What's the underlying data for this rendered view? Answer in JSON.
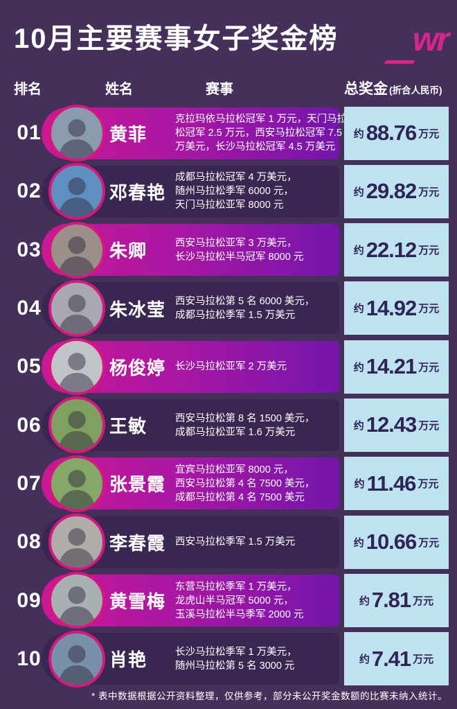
{
  "header": {
    "title": "10月主要赛事女子奖金榜",
    "logo": "wr"
  },
  "columns": {
    "rank": "排名",
    "name": "姓名",
    "events": "赛事",
    "prize": "总奖金",
    "prize_note": "(折合人民币)"
  },
  "labels": {
    "prize_prefix": "约",
    "prize_unit": "万元"
  },
  "rows": [
    {
      "rank": "01",
      "name": "黄菲",
      "events": [
        "克拉玛依马拉松冠军 1 万元，天门马拉",
        "松冠军 2.5 万元，西安马拉松冠军 7.5",
        "万美元，长沙马拉松冠军 4.5 万美元"
      ],
      "prize": "88.76",
      "photo_bg": "#8a9bb0"
    },
    {
      "rank": "02",
      "name": "邓春艳",
      "events": [
        "成都马拉松冠军 4 万美元，",
        "随州马拉松季军 6000 元，",
        "天门马拉松亚军 8000 元"
      ],
      "prize": "29.82",
      "photo_bg": "#5f8fc0"
    },
    {
      "rank": "03",
      "name": "朱卿",
      "events": [
        "西安马拉松亚军 3 万美元，",
        "长沙马拉松半马冠军 8000 元"
      ],
      "prize": "22.12",
      "photo_bg": "#9a8f8a"
    },
    {
      "rank": "04",
      "name": "朱冰莹",
      "events": [
        "西安马拉松第 5 名 6000 美元，",
        "成都马拉松季军 1.5 万美元"
      ],
      "prize": "14.92",
      "photo_bg": "#a8a8b0"
    },
    {
      "rank": "05",
      "name": "杨俊婷",
      "events": [
        "长沙马拉松亚军 2 万美元"
      ],
      "prize": "14.21",
      "photo_bg": "#c0c4c8"
    },
    {
      "rank": "06",
      "name": "王敏",
      "events": [
        "西安马拉松第 8 名 1500 美元，",
        "成都马拉松亚军 1.6 万美元"
      ],
      "prize": "12.43",
      "photo_bg": "#7fa05f"
    },
    {
      "rank": "07",
      "name": "张景霞",
      "events": [
        "宜宾马拉松亚军 8000 元，",
        "西安马拉松第 4 名 7500 美元，",
        "成都马拉松第 4 名 7500 美元"
      ],
      "prize": "11.46",
      "photo_bg": "#84a868"
    },
    {
      "rank": "08",
      "name": "李春霞",
      "events": [
        "西安马拉松季军 1.5 万美元"
      ],
      "prize": "10.66",
      "photo_bg": "#b0aca8"
    },
    {
      "rank": "09",
      "name": "黄雪梅",
      "events": [
        "东营马拉松季军 1 万美元，",
        "龙虎山半马冠军 5000 元，",
        "玉溪马拉松半马季军 2000 元"
      ],
      "prize": "7.81",
      "photo_bg": "#a8b0b4"
    },
    {
      "rank": "10",
      "name": "肖艳",
      "events": [
        "长沙马拉松季军 1 万美元，",
        "随州马拉松第 5 名 3000 元"
      ],
      "prize": "7.41",
      "photo_bg": "#7890a8"
    }
  ],
  "footer": {
    "note": "* 表中数据根据公开资料整理，仅供参考，部分未公开奖金数额的比赛未纳入统计。"
  },
  "colors": {
    "background": "#45305a",
    "band_gradient_left": "#cb1794",
    "band_gradient_right": "#7415ab",
    "band_dark": "#3a2751",
    "avatar_ring": "#d6177f",
    "prize_box": "#bfe2f1",
    "prize_text": "#2e2456",
    "logo_magenta": "#d7248e",
    "text_white": "#ffffff"
  },
  "chart_data": {
    "type": "table",
    "title": "10月主要赛事女子奖金榜",
    "columns": [
      "排名",
      "姓名",
      "赛事",
      "总奖金(折合人民币)"
    ],
    "categories": [
      "黄菲",
      "邓春艳",
      "朱卿",
      "朱冰莹",
      "杨俊婷",
      "王敏",
      "张景霞",
      "李春霞",
      "黄雪梅",
      "肖艳"
    ],
    "values": [
      88.76,
      29.82,
      22.12,
      14.92,
      14.21,
      12.43,
      11.46,
      10.66,
      7.81,
      7.41
    ],
    "value_unit": "万元",
    "rows": [
      [
        "01",
        "黄菲",
        "克拉玛依马拉松冠军 1 万元，天门马拉松冠军 2.5 万元，西安马拉松冠军 7.5 万美元，长沙马拉松冠军 4.5 万美元",
        "约 88.76 万元"
      ],
      [
        "02",
        "邓春艳",
        "成都马拉松冠军 4 万美元，随州马拉松季军 6000 元，天门马拉松亚军 8000 元",
        "约 29.82 万元"
      ],
      [
        "03",
        "朱卿",
        "西安马拉松亚军 3 万美元，长沙马拉松半马冠军 8000 元",
        "约 22.12 万元"
      ],
      [
        "04",
        "朱冰莹",
        "西安马拉松第 5 名 6000 美元，成都马拉松季军 1.5 万美元",
        "约 14.92 万元"
      ],
      [
        "05",
        "杨俊婷",
        "长沙马拉松亚军 2 万美元",
        "约 14.21 万元"
      ],
      [
        "06",
        "王敏",
        "西安马拉松第 8 名 1500 美元，成都马拉松亚军 1.6 万美元",
        "约 12.43 万元"
      ],
      [
        "07",
        "张景霞",
        "宜宾马拉松亚军 8000 元，西安马拉松第 4 名 7500 美元，成都马拉松第 4 名 7500 美元",
        "约 11.46 万元"
      ],
      [
        "08",
        "李春霞",
        "西安马拉松季军 1.5 万美元",
        "约 10.66 万元"
      ],
      [
        "09",
        "黄雪梅",
        "东营马拉松季军 1 万美元，龙虎山半马冠军 5000 元，玉溪马拉松半马季军 2000 元",
        "约 7.81 万元"
      ],
      [
        "10",
        "肖艳",
        "长沙马拉松季军 1 万美元，随州马拉松第 5 名 3000 元",
        "约 7.41 万元"
      ]
    ]
  }
}
